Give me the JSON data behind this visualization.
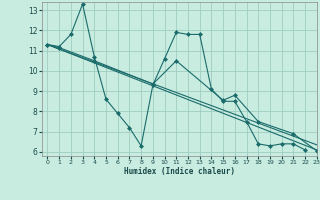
{
  "xlabel": "Humidex (Indice chaleur)",
  "xlim": [
    -0.5,
    23
  ],
  "ylim": [
    5.8,
    13.4
  ],
  "yticks": [
    6,
    7,
    8,
    9,
    10,
    11,
    12,
    13
  ],
  "xticks": [
    0,
    1,
    2,
    3,
    4,
    5,
    6,
    7,
    8,
    9,
    10,
    11,
    12,
    13,
    14,
    15,
    16,
    17,
    18,
    19,
    20,
    21,
    22,
    23
  ],
  "bg_color": "#c8ece0",
  "line_color": "#1a6b6b",
  "grid_color": "#a0ccc0",
  "series": [
    {
      "x": [
        0,
        1,
        2,
        3,
        4,
        5,
        6,
        7,
        8,
        9,
        10,
        11,
        12,
        13,
        14,
        15,
        16,
        17,
        18,
        19,
        20,
        21,
        22
      ],
      "y": [
        11.3,
        11.2,
        11.8,
        13.3,
        10.7,
        8.6,
        7.9,
        7.2,
        6.3,
        9.3,
        10.6,
        11.9,
        11.8,
        11.8,
        9.1,
        8.5,
        8.5,
        7.5,
        6.4,
        6.3,
        6.4,
        6.4,
        6.1
      ],
      "marker": true
    },
    {
      "x": [
        0,
        1,
        4,
        9,
        11,
        15,
        16,
        18,
        21,
        23
      ],
      "y": [
        11.3,
        11.15,
        10.5,
        9.35,
        10.5,
        8.55,
        8.8,
        7.5,
        6.9,
        6.05
      ],
      "marker": true
    },
    {
      "x": [
        0,
        23
      ],
      "y": [
        11.3,
        6.1
      ],
      "marker": false
    },
    {
      "x": [
        0,
        23
      ],
      "y": [
        11.3,
        6.35
      ],
      "marker": false
    }
  ]
}
